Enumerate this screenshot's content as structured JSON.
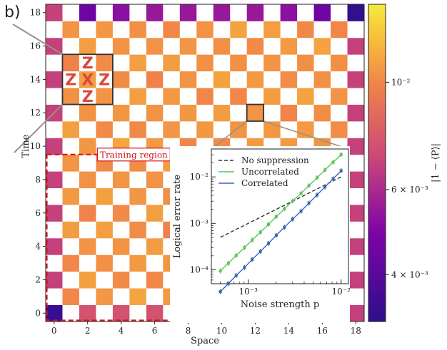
{
  "panel_label": "b)",
  "colors": {
    "grid_low": "#2d0f8c",
    "grid_high": "#f6ea3c",
    "white_cell": "#ffffff",
    "training_region": "#d0181e",
    "stabilizer_letters": "#d9493e",
    "stabilizer_box": "#333333",
    "no_suppression": "#333333",
    "uncorrelated": "#5cc35a",
    "correlated": "#3a66b0"
  },
  "chart_data": [
    {
      "type": "heatmap",
      "xlabel": "Space",
      "ylabel": "Time",
      "x_ticks": [
        0,
        2,
        4,
        6,
        8,
        10,
        12,
        14,
        16,
        18
      ],
      "y_ticks": [
        0,
        2,
        4,
        6,
        8,
        10,
        12,
        14,
        16,
        18
      ],
      "xlim": [
        -0.5,
        18.5
      ],
      "ylim": [
        -0.5,
        18.5
      ],
      "grid_pattern": "checkerboard (colored where space+time is even)",
      "colorbar": {
        "label": "|1 − ⟨P⟩|",
        "scale": "log",
        "range": [
          0.0032,
          0.0145
        ],
        "tick_labels": [
          "4 × 10⁻³",
          "6 × 10⁻³",
          "10⁻²"
        ],
        "tick_values": [
          0.004,
          0.006,
          0.01
        ]
      },
      "notable_cells": {
        "bottom_left_corner": {
          "space": 0,
          "time": 0,
          "value": 0.0034
        },
        "top_right_corner": {
          "space": 18,
          "time": 18,
          "value": 0.0033
        },
        "top_row_purple": [
          {
            "space": 2,
            "time": 18,
            "value": 0.0045
          },
          {
            "space": 4,
            "time": 18,
            "value": 0.0052
          },
          {
            "space": 6,
            "time": 18,
            "value": 0.0055
          },
          {
            "space": 8,
            "time": 18,
            "value": 0.0055
          },
          {
            "space": 10,
            "time": 18,
            "value": 0.0055
          },
          {
            "space": 12,
            "time": 18,
            "value": 0.0055
          },
          {
            "space": 14,
            "time": 18,
            "value": 0.0052
          },
          {
            "space": 16,
            "time": 18,
            "value": 0.0045
          }
        ],
        "left_edge_bulk": 0.0068,
        "right_edge_bulk": 0.0068,
        "bottom_edge_bulk": 0.0075,
        "interior_bulk": 0.0112
      },
      "annotations": {
        "training_region": {
          "label": "Training region",
          "space_range": [
            -0.5,
            9.5
          ],
          "time_range": [
            -0.5,
            9.5
          ]
        },
        "stabilizer": {
          "center": {
            "space": 2,
            "time": 14
          },
          "letters": {
            "center": "X",
            "neighbors": [
              "Z",
              "Z",
              "Z",
              "Z"
            ]
          }
        },
        "zoom_cell": {
          "space": 12,
          "time": 12
        }
      }
    },
    {
      "type": "line",
      "xlabel": "Noise strength p",
      "ylabel": "Logical error rate",
      "x_scale": "log",
      "y_scale": "log",
      "xlim": [
        0.0004,
        0.012
      ],
      "ylim": [
        5e-05,
        0.04
      ],
      "x_tick_labels": [
        "10⁻³",
        "10⁻²"
      ],
      "y_tick_labels": [
        "10⁻⁴",
        "10⁻³",
        "10⁻²"
      ],
      "legend_position": "top-left",
      "series": [
        {
          "name": "No suppression",
          "style": "dashed line",
          "x": [
            0.0005,
            0.01
          ],
          "y": [
            0.0005,
            0.01
          ]
        },
        {
          "name": "Uncorrelated",
          "style": "line + markers",
          "x": [
            0.0005,
            0.00061,
            0.00074,
            0.00091,
            0.0011,
            0.00135,
            0.00165,
            0.002,
            0.00245,
            0.003,
            0.0037,
            0.0045,
            0.0055,
            0.0067,
            0.0082,
            0.01
          ],
          "y": [
            9.4e-05,
            0.000138,
            0.000203,
            0.000299,
            0.000437,
            0.000645,
            0.00095,
            0.00139,
            0.00205,
            0.00302,
            0.00445,
            0.0065,
            0.0096,
            0.0141,
            0.0208,
            0.0302
          ]
        },
        {
          "name": "Correlated",
          "style": "line + markers",
          "x": [
            0.0005,
            0.00061,
            0.00074,
            0.00091,
            0.0011,
            0.00135,
            0.00165,
            0.002,
            0.00245,
            0.003,
            0.0037,
            0.0045,
            0.0055,
            0.0067,
            0.0082,
            0.01
          ],
          "y": [
            3.37e-05,
            5.03e-05,
            7.51e-05,
            0.000112,
            0.000166,
            0.000248,
            0.00037,
            0.000552,
            0.000823,
            0.00123,
            0.00183,
            0.00273,
            0.00408,
            0.00609,
            0.00909,
            0.0136
          ]
        }
      ]
    }
  ]
}
